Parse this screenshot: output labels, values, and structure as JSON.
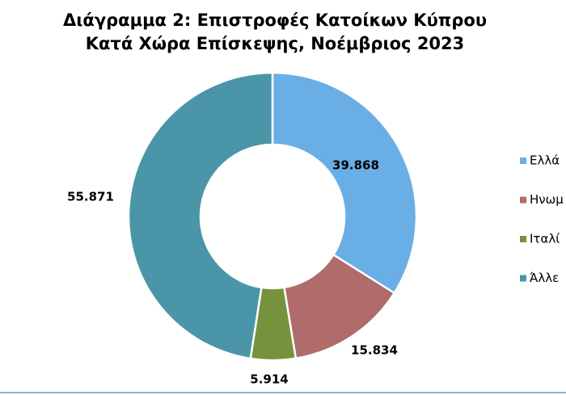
{
  "chart_data": {
    "type": "donut",
    "title": [
      "Διάγραμμα 2: Επιστροφές Κατοίκων Κύπρου",
      "Κατά Χώρα Επίσκεψης, Νοέμβριος 2023"
    ],
    "categories": [
      "Ελλά",
      "Ηνωμ",
      "Ιταλί",
      "Άλλε"
    ],
    "values": [
      39868,
      15834,
      5914,
      55871
    ],
    "value_labels": [
      "39.868",
      "15.834",
      "5.914",
      "55.871"
    ],
    "colors": [
      "#6aaee6",
      "#b06b6b",
      "#76923c",
      "#4a96a8"
    ],
    "legend": "right"
  }
}
